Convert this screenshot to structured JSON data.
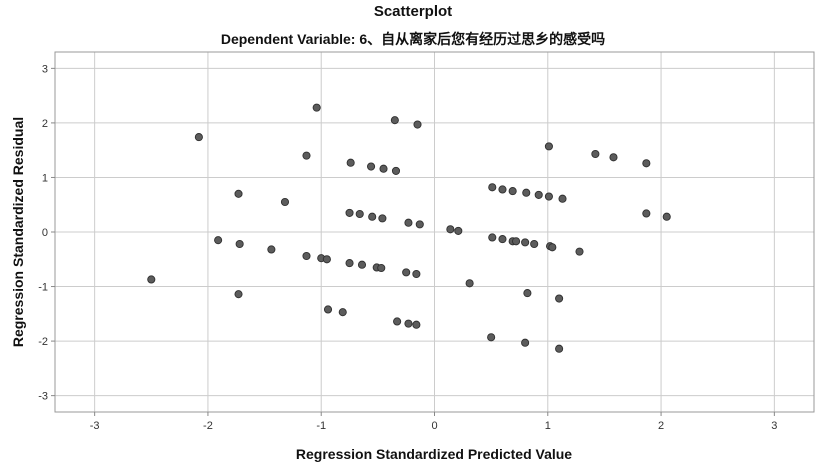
{
  "chart_data": {
    "type": "scatter",
    "title": "Scatterplot",
    "subtitle": "Dependent Variable: 6、自从离家后您有经历过思乡的感受吗",
    "xlabel": "Regression Standardized Predicted Value",
    "ylabel": "Regression Standardized Residual",
    "xlim": [
      -3.35,
      3.35
    ],
    "ylim": [
      -3.3,
      3.3
    ],
    "xticks": [
      -3,
      -2,
      -1,
      0,
      1,
      2,
      3
    ],
    "yticks": [
      -3,
      -2,
      -1,
      0,
      1,
      2,
      3
    ],
    "xtick_labels": [
      "-3",
      "-2",
      "-1",
      "0",
      "1",
      "2",
      "3"
    ],
    "ytick_labels": [
      "-3",
      "-2",
      "-1",
      "0",
      "1",
      "2",
      "3"
    ],
    "grid": true,
    "marker_color": "#5c5c5c",
    "points": [
      [
        -2.5,
        -0.87
      ],
      [
        -2.08,
        1.74
      ],
      [
        -1.91,
        -0.15
      ],
      [
        -1.73,
        0.7
      ],
      [
        -1.73,
        -1.14
      ],
      [
        -1.72,
        -0.22
      ],
      [
        -1.44,
        -0.32
      ],
      [
        -1.32,
        0.55
      ],
      [
        -1.13,
        1.4
      ],
      [
        -1.13,
        -0.44
      ],
      [
        -1.04,
        2.28
      ],
      [
        -1.0,
        -0.48
      ],
      [
        -0.95,
        -0.5
      ],
      [
        -0.94,
        -1.42
      ],
      [
        -0.81,
        -1.47
      ],
      [
        -0.74,
        1.27
      ],
      [
        -0.75,
        0.35
      ],
      [
        -0.75,
        -0.57
      ],
      [
        -0.66,
        0.33
      ],
      [
        -0.64,
        -0.6
      ],
      [
        -0.56,
        1.2
      ],
      [
        -0.55,
        0.28
      ],
      [
        -0.51,
        -0.65
      ],
      [
        -0.47,
        -0.66
      ],
      [
        -0.45,
        1.16
      ],
      [
        -0.46,
        0.25
      ],
      [
        -0.35,
        2.05
      ],
      [
        -0.34,
        1.12
      ],
      [
        -0.33,
        -1.64
      ],
      [
        -0.25,
        -0.74
      ],
      [
        -0.23,
        0.17
      ],
      [
        -0.23,
        -1.68
      ],
      [
        -0.16,
        -1.7
      ],
      [
        -0.15,
        1.97
      ],
      [
        -0.13,
        0.14
      ],
      [
        -0.16,
        -0.77
      ],
      [
        0.14,
        0.05
      ],
      [
        0.21,
        0.02
      ],
      [
        0.31,
        -0.94
      ],
      [
        0.5,
        -1.93
      ],
      [
        0.51,
        0.82
      ],
      [
        0.51,
        -0.1
      ],
      [
        0.6,
        0.78
      ],
      [
        0.6,
        -0.13
      ],
      [
        0.69,
        0.75
      ],
      [
        0.69,
        -0.17
      ],
      [
        0.72,
        -0.17
      ],
      [
        0.81,
        0.72
      ],
      [
        0.8,
        -0.19
      ],
      [
        0.8,
        -2.03
      ],
      [
        0.82,
        -1.12
      ],
      [
        0.88,
        -0.22
      ],
      [
        0.92,
        0.68
      ],
      [
        1.01,
        1.57
      ],
      [
        1.01,
        0.65
      ],
      [
        1.02,
        -0.26
      ],
      [
        1.04,
        -0.28
      ],
      [
        1.1,
        -2.14
      ],
      [
        1.1,
        -1.22
      ],
      [
        1.13,
        0.61
      ],
      [
        1.28,
        -0.36
      ],
      [
        1.42,
        1.43
      ],
      [
        1.58,
        1.37
      ],
      [
        1.87,
        1.26
      ],
      [
        1.87,
        0.34
      ],
      [
        2.05,
        0.28
      ]
    ]
  }
}
